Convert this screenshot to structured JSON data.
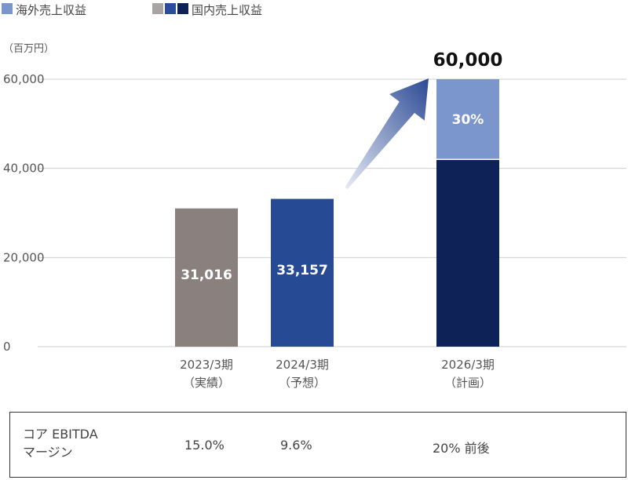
{
  "legend": [
    {
      "label": "海外売上収益",
      "swatches": [
        "#7b96cc"
      ]
    },
    {
      "label": "国内売上収益",
      "swatches": [
        "#a9a3a3",
        "#2c4b9a",
        "#0e2258"
      ]
    }
  ],
  "chart_data": {
    "type": "bar",
    "stacked": true,
    "unit": "（百万円）",
    "ylim": [
      0,
      60000
    ],
    "yticks": [
      "0",
      "20,000",
      "40,000",
      "60,000"
    ],
    "grid": true,
    "legend_position": "top-left",
    "categories": [
      {
        "line1": "2023/3期",
        "line2": "（実績）"
      },
      {
        "line1": "2024/3期",
        "line2": "（予想）"
      },
      {
        "line1": "2026/3期",
        "line2": "（計画）"
      }
    ],
    "series": [
      {
        "name": "国内売上収益",
        "values": [
          31016,
          33157,
          42000
        ],
        "colors": [
          "#8a807e",
          "#274a94",
          "#0f2257"
        ]
      },
      {
        "name": "海外売上収益",
        "values": [
          null,
          null,
          18000
        ],
        "colors": [
          "#7b96cc",
          "#7b96cc",
          "#7b96cc"
        ]
      }
    ],
    "bar_labels": [
      "31,016",
      "33,157",
      "30%"
    ],
    "total_label": "60,000",
    "annotation": "arrow"
  },
  "ebitda": {
    "label_line1": "コア EBITDA",
    "label_line2": "マージン",
    "values": [
      "15.0%",
      "9.6%",
      "20% 前後"
    ]
  }
}
